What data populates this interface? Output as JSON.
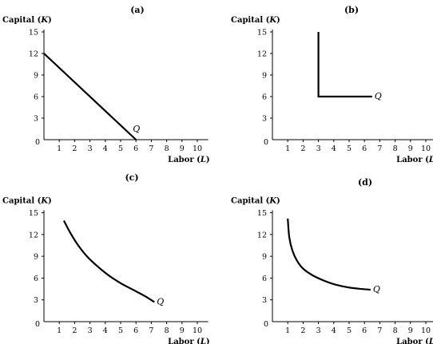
{
  "chart_data": [
    {
      "type": "line",
      "title": "(a)",
      "xlabel": "Labor (L)",
      "ylabel": "Capital (K)",
      "xlim": [
        0,
        10.5
      ],
      "ylim": [
        0,
        16
      ],
      "xticks": [
        "0",
        "1",
        "2",
        "3",
        "4",
        "5",
        "6",
        "7",
        "8",
        "9",
        "10"
      ],
      "yticks": [
        "3",
        "6",
        "9",
        "12",
        "15"
      ],
      "grid": false,
      "series": [
        {
          "name": "Q",
          "x": [
            0,
            6
          ],
          "y": [
            12,
            0
          ]
        }
      ]
    },
    {
      "type": "line",
      "title": "(b)",
      "xlabel": "Labor (L)",
      "ylabel": "Capital (K)",
      "xlim": [
        0,
        10.5
      ],
      "ylim": [
        0,
        16
      ],
      "xticks": [
        "0",
        "1",
        "2",
        "3",
        "4",
        "5",
        "6",
        "7",
        "8",
        "9",
        "10"
      ],
      "yticks": [
        "3",
        "6",
        "9",
        "12",
        "15"
      ],
      "grid": false,
      "series": [
        {
          "name": "Q",
          "x": [
            3,
            3,
            6.5
          ],
          "y": [
            15,
            6,
            6
          ]
        }
      ]
    },
    {
      "type": "line",
      "title": "(c)",
      "xlabel": "Labor (L)",
      "ylabel": "Capital (K)",
      "xlim": [
        0,
        10.5
      ],
      "ylim": [
        0,
        16
      ],
      "xticks": [
        "0",
        "1",
        "2",
        "3",
        "4",
        "5",
        "6",
        "7",
        "8",
        "9",
        "10"
      ],
      "yticks": [
        "3",
        "6",
        "9",
        "12",
        "15"
      ],
      "grid": false,
      "series": [
        {
          "name": "Q",
          "x": [
            1.3,
            1.7,
            2.2,
            2.8,
            3.5,
            4.2,
            5.0,
            5.8,
            6.6,
            7.2
          ],
          "y": [
            13.9,
            12.3,
            10.6,
            9.0,
            7.6,
            6.4,
            5.3,
            4.4,
            3.5,
            2.7
          ]
        }
      ]
    },
    {
      "type": "line",
      "title": "(d)",
      "xlabel": "Labor (L)",
      "ylabel": "Capital (K)",
      "xlim": [
        0,
        10.5
      ],
      "ylim": [
        0,
        16
      ],
      "xticks": [
        "0",
        "1",
        "2",
        "3",
        "4",
        "5",
        "6",
        "7",
        "8",
        "9",
        "10"
      ],
      "yticks": [
        "3",
        "6",
        "9",
        "12",
        "15"
      ],
      "grid": false,
      "series": [
        {
          "name": "Q",
          "x": [
            1.0,
            1.1,
            1.3,
            1.6,
            2.0,
            2.6,
            3.3,
            4.1,
            5.0,
            5.8,
            6.4
          ],
          "y": [
            14.2,
            11.6,
            9.8,
            8.4,
            7.3,
            6.4,
            5.7,
            5.1,
            4.7,
            4.5,
            4.4
          ]
        }
      ]
    }
  ]
}
